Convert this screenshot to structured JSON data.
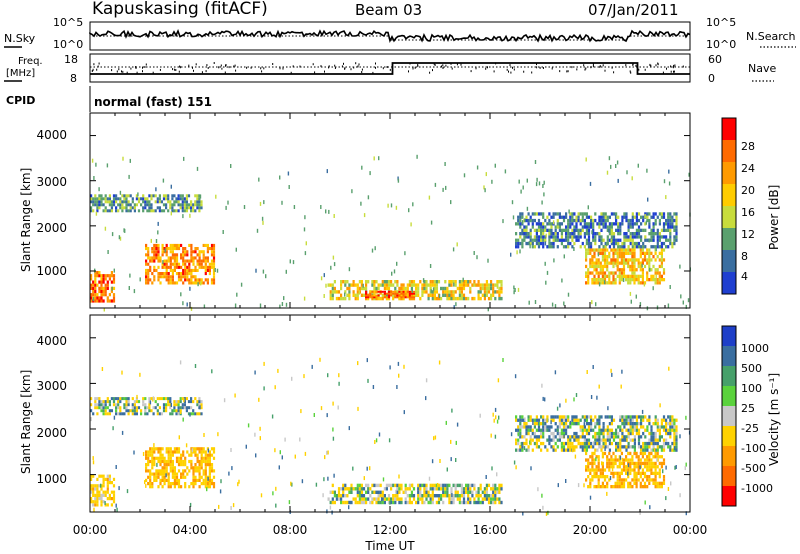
{
  "header": {
    "station": "Kapuskasing (fitACF)",
    "beam": "Beam 03",
    "date": "07/Jan/2011"
  },
  "noise": {
    "left_label": "N.Sky",
    "right_label": "N.Search",
    "left_ticks": [
      "10^5",
      "10^0"
    ],
    "right_ticks": [
      "10^5",
      "10^0"
    ]
  },
  "freq": {
    "label_line1": "Freq.",
    "label_line2": "[MHz]",
    "left_ticks": [
      "18",
      "8"
    ],
    "right_label": "Nave",
    "right_ticks": [
      "60",
      "0"
    ]
  },
  "cpid": {
    "label": "CPID",
    "value": "normal (fast) 151"
  },
  "x_axis": {
    "title": "Time UT",
    "ticks": [
      "00:00",
      "04:00",
      "08:00",
      "12:00",
      "16:00",
      "20:00",
      "00:00"
    ]
  },
  "power_panel": {
    "ylabel": "Slant Range [km]",
    "yticks": [
      "4000",
      "3000",
      "2000",
      "1000"
    ],
    "colorbar_label": "Power [dB]",
    "colorbar_ticks": [
      "28",
      "24",
      "20",
      "16",
      "12",
      "8",
      "4"
    ],
    "colors": [
      "#ff0000",
      "#ff6a00",
      "#ff9a00",
      "#ffcc00",
      "#c8dc3c",
      "#5aa06e",
      "#3a6ea0",
      "#1f3fd0"
    ]
  },
  "velocity_panel": {
    "ylabel": "Slant Range [km]",
    "yticks": [
      "4000",
      "3000",
      "2000",
      "1000"
    ],
    "colorbar_label": "Velocity [m s⁻¹]",
    "colorbar_ticks": [
      "1000",
      "500",
      "100",
      "25",
      "-25",
      "-100",
      "-500",
      "-1000"
    ],
    "colors": [
      "#1e3fc8",
      "#3a6ea0",
      "#46a06a",
      "#5ad23c",
      "#c8c8c8",
      "#ffd200",
      "#ff9a00",
      "#ff6a00",
      "#ff0000"
    ]
  },
  "chart_data": [
    {
      "type": "heatmap",
      "title": "Kapuskasing (fitACF)",
      "xlabel": "Time UT",
      "ylabel": "Slant Range [km]",
      "xlim": [
        0,
        24
      ],
      "ylim": [
        180,
        4500
      ],
      "colorbar": "Power [dB]",
      "clim": [
        0,
        30
      ],
      "regions": [
        {
          "t0": 0.0,
          "t1": 1.0,
          "r0": 300,
          "r1": 1000,
          "value": 24
        },
        {
          "t0": 2.2,
          "t1": 5.0,
          "r0": 700,
          "r1": 1600,
          "value": 22
        },
        {
          "t0": 0.0,
          "t1": 4.5,
          "r0": 2300,
          "r1": 2700,
          "value": 8
        },
        {
          "t0": 9.5,
          "t1": 16.5,
          "r0": 350,
          "r1": 800,
          "value": 16
        },
        {
          "t0": 11.0,
          "t1": 13.0,
          "r0": 400,
          "r1": 560,
          "value": 26
        },
        {
          "t0": 19.8,
          "t1": 23.0,
          "r0": 700,
          "r1": 1500,
          "value": 18
        },
        {
          "t0": 17.0,
          "t1": 23.5,
          "r0": 1500,
          "r1": 2300,
          "value": 6
        }
      ]
    },
    {
      "type": "heatmap",
      "title": "",
      "xlabel": "Time UT",
      "ylabel": "Slant Range [km]",
      "xlim": [
        0,
        24
      ],
      "ylim": [
        180,
        4500
      ],
      "colorbar": "Velocity [m s⁻¹]",
      "clim": [
        -1000,
        1000
      ],
      "regions": [
        {
          "t0": 0.0,
          "t1": 1.0,
          "r0": 300,
          "r1": 1000,
          "value": -300
        },
        {
          "t0": 2.2,
          "t1": 5.0,
          "r0": 700,
          "r1": 1600,
          "value": -400
        },
        {
          "t0": 0.0,
          "t1": 4.5,
          "r0": 2300,
          "r1": 2700,
          "value": 0
        },
        {
          "t0": 9.5,
          "t1": 16.5,
          "r0": 350,
          "r1": 800,
          "value": -50
        },
        {
          "t0": 19.8,
          "t1": 23.0,
          "r0": 700,
          "r1": 1500,
          "value": -500
        },
        {
          "t0": 17.0,
          "t1": 23.5,
          "r0": 1500,
          "r1": 2300,
          "value": 0
        }
      ]
    }
  ]
}
